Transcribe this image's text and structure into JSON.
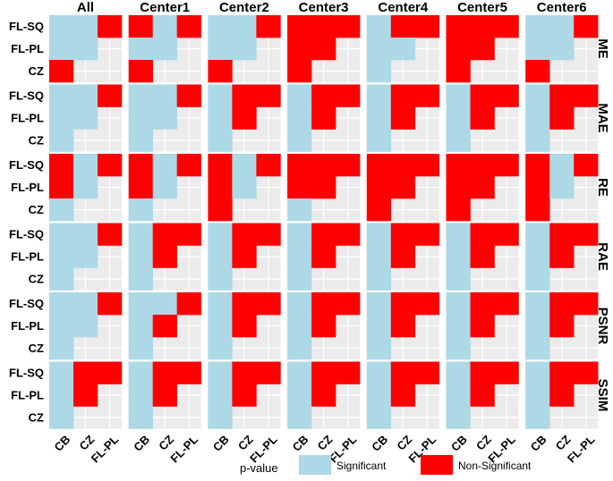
{
  "chart_data": {
    "type": "heatmap",
    "columns": [
      "All",
      "Center1",
      "Center2",
      "Center3",
      "Center4",
      "Center5",
      "Center6"
    ],
    "rows": [
      "ME",
      "MAE",
      "RE",
      "RAE",
      "PSNR",
      "SSIM"
    ],
    "x_categories": [
      "CB",
      "CZ",
      "FL-PL"
    ],
    "y_categories": [
      "FL-SQ",
      "FL-PL",
      "CZ"
    ],
    "cell_order_note_excluded": false,
    "legend": {
      "title": "p-value",
      "items": [
        {
          "key": "S",
          "label": "Significant",
          "color": "#add8e6"
        },
        {
          "key": "N",
          "label": "Non-Significant",
          "color": "#ff0000"
        }
      ]
    },
    "values": {
      "ME": {
        "All": [
          [
            "S",
            "S",
            "N"
          ],
          [
            "S",
            "S",
            ""
          ],
          [
            "N",
            "",
            ""
          ]
        ],
        "Center1": [
          [
            "N",
            "S",
            "N"
          ],
          [
            "S",
            "S",
            ""
          ],
          [
            "N",
            "",
            ""
          ]
        ],
        "Center2": [
          [
            "S",
            "S",
            "N"
          ],
          [
            "S",
            "S",
            ""
          ],
          [
            "N",
            "",
            ""
          ]
        ],
        "Center3": [
          [
            "N",
            "N",
            "N"
          ],
          [
            "N",
            "N",
            ""
          ],
          [
            "N",
            "",
            ""
          ]
        ],
        "Center4": [
          [
            "S",
            "N",
            "N"
          ],
          [
            "S",
            "S",
            ""
          ],
          [
            "S",
            "",
            ""
          ]
        ],
        "Center5": [
          [
            "N",
            "N",
            "N"
          ],
          [
            "N",
            "N",
            ""
          ],
          [
            "N",
            "",
            ""
          ]
        ],
        "Center6": [
          [
            "S",
            "S",
            "N"
          ],
          [
            "S",
            "S",
            ""
          ],
          [
            "N",
            "",
            ""
          ]
        ]
      },
      "MAE": {
        "All": [
          [
            "S",
            "S",
            "N"
          ],
          [
            "S",
            "S",
            ""
          ],
          [
            "S",
            "",
            ""
          ]
        ],
        "Center1": [
          [
            "S",
            "S",
            "N"
          ],
          [
            "S",
            "S",
            ""
          ],
          [
            "S",
            "",
            ""
          ]
        ],
        "Center2": [
          [
            "S",
            "N",
            "N"
          ],
          [
            "S",
            "N",
            ""
          ],
          [
            "S",
            "",
            ""
          ]
        ],
        "Center3": [
          [
            "S",
            "N",
            "N"
          ],
          [
            "S",
            "N",
            ""
          ],
          [
            "S",
            "",
            ""
          ]
        ],
        "Center4": [
          [
            "S",
            "N",
            "N"
          ],
          [
            "S",
            "N",
            ""
          ],
          [
            "S",
            "",
            ""
          ]
        ],
        "Center5": [
          [
            "S",
            "N",
            "N"
          ],
          [
            "S",
            "N",
            ""
          ],
          [
            "S",
            "",
            ""
          ]
        ],
        "Center6": [
          [
            "S",
            "N",
            "N"
          ],
          [
            "S",
            "N",
            ""
          ],
          [
            "S",
            "",
            ""
          ]
        ]
      },
      "RE": {
        "All": [
          [
            "N",
            "S",
            "N"
          ],
          [
            "N",
            "S",
            ""
          ],
          [
            "S",
            "",
            ""
          ]
        ],
        "Center1": [
          [
            "N",
            "S",
            "N"
          ],
          [
            "N",
            "S",
            ""
          ],
          [
            "S",
            "",
            ""
          ]
        ],
        "Center2": [
          [
            "N",
            "S",
            "N"
          ],
          [
            "N",
            "S",
            ""
          ],
          [
            "N",
            "",
            ""
          ]
        ],
        "Center3": [
          [
            "N",
            "N",
            "N"
          ],
          [
            "N",
            "N",
            ""
          ],
          [
            "S",
            "",
            ""
          ]
        ],
        "Center4": [
          [
            "N",
            "N",
            "N"
          ],
          [
            "N",
            "N",
            ""
          ],
          [
            "N",
            "",
            ""
          ]
        ],
        "Center5": [
          [
            "N",
            "N",
            "N"
          ],
          [
            "N",
            "N",
            ""
          ],
          [
            "N",
            "",
            ""
          ]
        ],
        "Center6": [
          [
            "N",
            "S",
            "N"
          ],
          [
            "N",
            "S",
            ""
          ],
          [
            "N",
            "",
            ""
          ]
        ]
      },
      "RAE": {
        "All": [
          [
            "S",
            "S",
            "N"
          ],
          [
            "S",
            "S",
            ""
          ],
          [
            "S",
            "",
            ""
          ]
        ],
        "Center1": [
          [
            "S",
            "N",
            "N"
          ],
          [
            "S",
            "N",
            ""
          ],
          [
            "S",
            "",
            ""
          ]
        ],
        "Center2": [
          [
            "S",
            "N",
            "N"
          ],
          [
            "S",
            "N",
            ""
          ],
          [
            "S",
            "",
            ""
          ]
        ],
        "Center3": [
          [
            "S",
            "N",
            "N"
          ],
          [
            "S",
            "N",
            ""
          ],
          [
            "S",
            "",
            ""
          ]
        ],
        "Center4": [
          [
            "S",
            "N",
            "N"
          ],
          [
            "S",
            "N",
            ""
          ],
          [
            "S",
            "",
            ""
          ]
        ],
        "Center5": [
          [
            "S",
            "N",
            "N"
          ],
          [
            "S",
            "N",
            ""
          ],
          [
            "S",
            "",
            ""
          ]
        ],
        "Center6": [
          [
            "S",
            "N",
            "N"
          ],
          [
            "S",
            "N",
            ""
          ],
          [
            "S",
            "",
            ""
          ]
        ]
      },
      "PSNR": {
        "All": [
          [
            "S",
            "S",
            "N"
          ],
          [
            "S",
            "S",
            ""
          ],
          [
            "S",
            "",
            ""
          ]
        ],
        "Center1": [
          [
            "S",
            "S",
            "N"
          ],
          [
            "S",
            "N",
            ""
          ],
          [
            "S",
            "",
            ""
          ]
        ],
        "Center2": [
          [
            "S",
            "N",
            "N"
          ],
          [
            "S",
            "N",
            ""
          ],
          [
            "S",
            "",
            ""
          ]
        ],
        "Center3": [
          [
            "S",
            "N",
            "N"
          ],
          [
            "S",
            "N",
            ""
          ],
          [
            "S",
            "",
            ""
          ]
        ],
        "Center4": [
          [
            "S",
            "N",
            "N"
          ],
          [
            "S",
            "N",
            ""
          ],
          [
            "S",
            "",
            ""
          ]
        ],
        "Center5": [
          [
            "S",
            "N",
            "N"
          ],
          [
            "S",
            "N",
            ""
          ],
          [
            "S",
            "",
            ""
          ]
        ],
        "Center6": [
          [
            "S",
            "N",
            "N"
          ],
          [
            "S",
            "N",
            ""
          ],
          [
            "S",
            "",
            ""
          ]
        ]
      },
      "SSIM": {
        "All": [
          [
            "S",
            "N",
            "N"
          ],
          [
            "S",
            "N",
            ""
          ],
          [
            "S",
            "",
            ""
          ]
        ],
        "Center1": [
          [
            "S",
            "N",
            "N"
          ],
          [
            "S",
            "N",
            ""
          ],
          [
            "S",
            "",
            ""
          ]
        ],
        "Center2": [
          [
            "S",
            "N",
            "N"
          ],
          [
            "S",
            "N",
            ""
          ],
          [
            "S",
            "",
            ""
          ]
        ],
        "Center3": [
          [
            "S",
            "N",
            "N"
          ],
          [
            "S",
            "N",
            ""
          ],
          [
            "S",
            "",
            ""
          ]
        ],
        "Center4": [
          [
            "S",
            "N",
            "N"
          ],
          [
            "S",
            "N",
            ""
          ],
          [
            "S",
            "",
            ""
          ]
        ],
        "Center5": [
          [
            "S",
            "N",
            "N"
          ],
          [
            "S",
            "N",
            ""
          ],
          [
            "S",
            "",
            ""
          ]
        ],
        "Center6": [
          [
            "S",
            "N",
            "N"
          ],
          [
            "S",
            "N",
            ""
          ],
          [
            "S",
            "",
            ""
          ]
        ]
      }
    },
    "grid": true,
    "legend_placement": "bottom"
  }
}
